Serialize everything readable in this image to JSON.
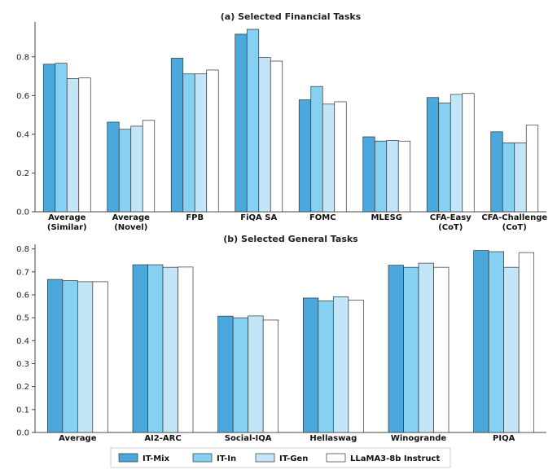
{
  "colors": {
    "IT-Mix": "#4aa8dc",
    "IT-In": "#86d0f2",
    "IT-Gen": "#c2e6f8",
    "LLaMA3-8b Instruct": "#ffffff"
  },
  "legend": {
    "items": [
      "IT-Mix",
      "IT-In",
      "IT-Gen",
      "LLaMA3-8b Instruct"
    ]
  },
  "chart_data": [
    {
      "type": "bar",
      "title": "(a) Selected Financial Tasks",
      "categories": [
        [
          "Average",
          "(Similar)"
        ],
        [
          "Average",
          "(Novel)"
        ],
        [
          "FPB"
        ],
        [
          "FiQA SA"
        ],
        [
          "FOMC"
        ],
        [
          "MLESG"
        ],
        [
          "CFA-Easy",
          "(CoT)"
        ],
        [
          "CFA-Challenge",
          "(CoT)"
        ]
      ],
      "ylim": [
        0,
        0.98
      ],
      "yticks": [
        "0.0",
        "0.2",
        "0.4",
        "0.6",
        "0.8"
      ],
      "ytick_values": [
        0,
        0.2,
        0.4,
        0.6,
        0.8
      ],
      "series": [
        {
          "name": "IT-Mix",
          "values": [
            0.762,
            0.463,
            0.793,
            0.917,
            0.578,
            0.387,
            0.59,
            0.413
          ]
        },
        {
          "name": "IT-In",
          "values": [
            0.767,
            0.426,
            0.712,
            0.942,
            0.647,
            0.365,
            0.562,
            0.356
          ]
        },
        {
          "name": "IT-Gen",
          "values": [
            0.688,
            0.442,
            0.712,
            0.797,
            0.556,
            0.368,
            0.606,
            0.356
          ]
        },
        {
          "name": "LLaMA3-8b Instruct",
          "values": [
            0.691,
            0.472,
            0.732,
            0.778,
            0.568,
            0.365,
            0.611,
            0.447
          ]
        }
      ]
    },
    {
      "type": "bar",
      "title": "(b) Selected General Tasks",
      "categories": [
        [
          "Average"
        ],
        [
          "AI2-ARC"
        ],
        [
          "Social-IQA"
        ],
        [
          "Hellaswag"
        ],
        [
          "Winogrande"
        ],
        [
          "PIQA"
        ]
      ],
      "ylim": [
        0,
        0.82
      ],
      "yticks": [
        "0.0",
        "0.1",
        "0.2",
        "0.3",
        "0.4",
        "0.5",
        "0.6",
        "0.7",
        "0.8"
      ],
      "ytick_values": [
        0,
        0.1,
        0.2,
        0.3,
        0.4,
        0.5,
        0.6,
        0.7,
        0.8
      ],
      "series": [
        {
          "name": "IT-Mix",
          "values": [
            0.667,
            0.731,
            0.507,
            0.586,
            0.729,
            0.793
          ]
        },
        {
          "name": "IT-In",
          "values": [
            0.662,
            0.731,
            0.5,
            0.574,
            0.72,
            0.788
          ]
        },
        {
          "name": "IT-Gen",
          "values": [
            0.657,
            0.72,
            0.508,
            0.591,
            0.738,
            0.72
          ]
        },
        {
          "name": "LLaMA3-8b Instruct",
          "values": [
            0.657,
            0.721,
            0.49,
            0.577,
            0.72,
            0.784
          ]
        }
      ]
    }
  ]
}
